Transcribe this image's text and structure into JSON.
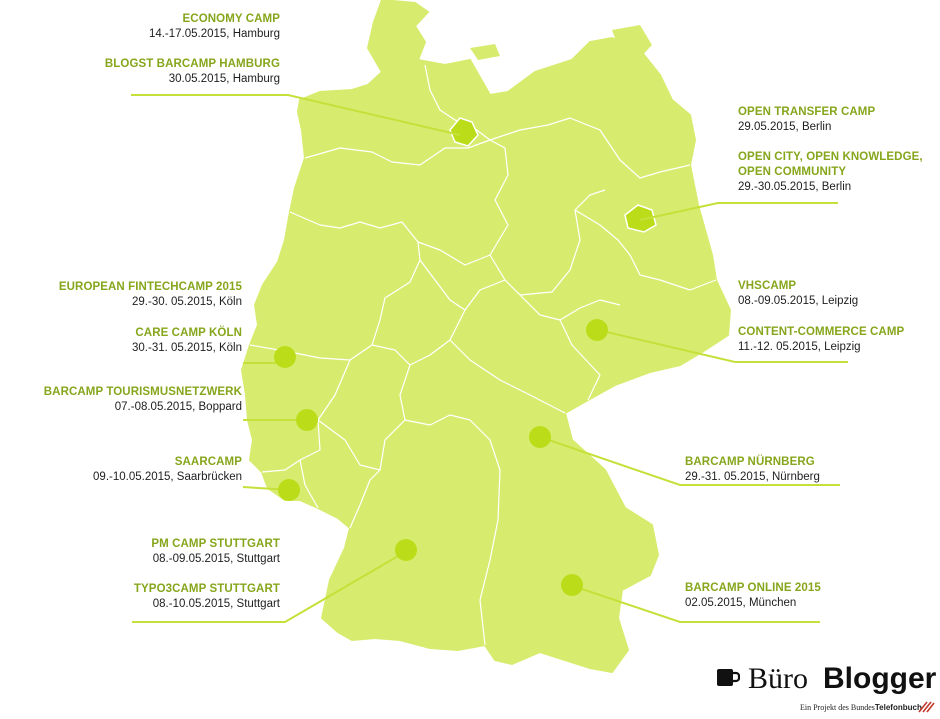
{
  "colors": {
    "land": "#d7ec6f",
    "border": "#ffffff",
    "marker": "#bbdd19",
    "line": "#c6e03a",
    "title": "#86a61c",
    "text": "#1e1e1e"
  },
  "events_left": [
    {
      "title": "ECONOMY CAMP",
      "date": "14.-17.05.2015, Hamburg"
    },
    {
      "title": "BLOGST BARCAMP HAMBURG",
      "date": "30.05.2015, Hamburg"
    },
    {
      "title": "EUROPEAN FINTECHCAMP 2015",
      "date": "29.-30. 05.2015, Köln"
    },
    {
      "title": "CARE CAMP KÖLN",
      "date": "30.-31. 05.2015, Köln"
    },
    {
      "title": "BARCAMP TOURISMUSNETZWERK",
      "date": "07.-08.05.2015, Boppard"
    },
    {
      "title": "SAARCAMP",
      "date": "09.-10.05.2015, Saarbrücken"
    },
    {
      "title": "PM CAMP STUTTGART",
      "date": "08.-09.05.2015, Stuttgart"
    },
    {
      "title": "TYPO3CAMP STUTTGART",
      "date": "08.-10.05.2015, Stuttgart"
    }
  ],
  "events_right": [
    {
      "title": "OPEN TRANSFER CAMP",
      "date": "29.05.2015, Berlin"
    },
    {
      "title": "OPEN CITY, OPEN KNOWLEDGE, OPEN COMMUNITY",
      "date": "29.-30.05.2015, Berlin"
    },
    {
      "title": "VHSCAMP",
      "date": "08.-09.05.2015, Leipzig"
    },
    {
      "title": "CONTENT-COMMERCE CAMP",
      "date": "11.-12. 05.2015, Leipzig"
    },
    {
      "title": "BARCAMP NÜRNBERG",
      "date": "29.-31. 05.2015, Nürnberg"
    },
    {
      "title": "BARCAMP ONLINE 2015",
      "date": "02.05.2015, München"
    }
  ],
  "markers": [
    {
      "name": "hamburg-marker",
      "city": "Hamburg"
    },
    {
      "name": "berlin-marker",
      "city": "Berlin"
    },
    {
      "name": "koeln-marker",
      "city": "Köln"
    },
    {
      "name": "boppard-marker",
      "city": "Boppard"
    },
    {
      "name": "saarbruecken-marker",
      "city": "Saarbrücken"
    },
    {
      "name": "stuttgart-marker",
      "city": "Stuttgart"
    },
    {
      "name": "leipzig-marker",
      "city": "Leipzig"
    },
    {
      "name": "nuernberg-marker",
      "city": "Nürnberg"
    },
    {
      "name": "muenchen-marker",
      "city": "München"
    }
  ],
  "brand": {
    "part1": "Büro",
    "part2": "Blogger",
    "tagline_prefix": "Ein Projekt des ",
    "tagline_mid": "Bundes",
    "tagline_bold": "Telefonbuch"
  }
}
